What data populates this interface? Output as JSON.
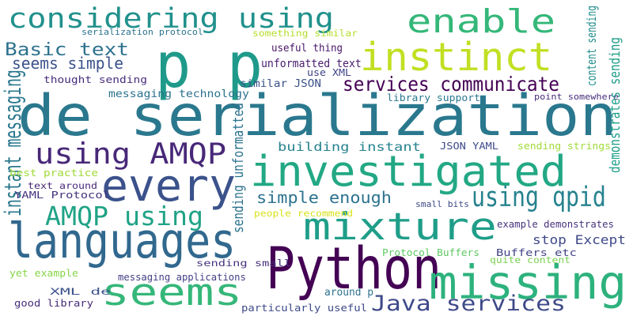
{
  "words": [
    {
      "text": "de serialization",
      "color": "#2a788e"
    },
    {
      "text": "p p",
      "color": "#1f9a8a"
    },
    {
      "text": "instinct",
      "color": "#c2df23"
    },
    {
      "text": "investigated",
      "color": "#22a884"
    },
    {
      "text": "languages",
      "color": "#31688e"
    },
    {
      "text": "Python",
      "color": "#440154"
    },
    {
      "text": "missing",
      "color": "#2db27d"
    },
    {
      "text": "mixture",
      "color": "#1f9e89"
    },
    {
      "text": "every",
      "color": "#3b528b"
    },
    {
      "text": "seems",
      "color": "#35b779"
    },
    {
      "text": "enable",
      "color": "#35b779"
    },
    {
      "text": "considering using",
      "color": "#21918c"
    },
    {
      "text": "using AMQP",
      "color": "#482878"
    },
    {
      "text": "Java services",
      "color": "#3e4a89"
    },
    {
      "text": "AMQP using",
      "color": "#20a386"
    },
    {
      "text": "using qpid",
      "color": "#26828e"
    },
    {
      "text": "services communicate",
      "color": "#440154"
    },
    {
      "text": "Basic text",
      "color": "#2c728e"
    },
    {
      "text": "seems simple",
      "color": "#3b528b"
    },
    {
      "text": "simple enough",
      "color": "#2c728e"
    },
    {
      "text": "building instant",
      "color": "#26828e"
    },
    {
      "text": "messaging technology",
      "color": "#2c728e"
    },
    {
      "text": "stop Except",
      "color": "#3e4a89"
    },
    {
      "text": "unformatted text",
      "color": "#481d6f"
    },
    {
      "text": "thought sending",
      "color": "#472d7b"
    },
    {
      "text": "useful thing",
      "color": "#481467"
    },
    {
      "text": "similar JSON",
      "color": "#3b528b"
    },
    {
      "text": "use XML",
      "color": "#414487"
    },
    {
      "text": "serialization protocol",
      "color": "#2c728e"
    },
    {
      "text": "something similar",
      "color": "#b5de2b"
    },
    {
      "text": "instant messaging",
      "color": "#2a788e"
    },
    {
      "text": "sending unformatted",
      "color": "#2c728e"
    },
    {
      "text": "library support",
      "color": "#2a788e"
    },
    {
      "text": "JSON YAML",
      "color": "#3e4a89"
    },
    {
      "text": "sending strings",
      "color": "#a0da39"
    },
    {
      "text": "point somewhere",
      "color": "#472d7b"
    },
    {
      "text": "demonstrates sending",
      "color": "#1f9e89"
    },
    {
      "text": "content sending",
      "color": "#228d8d"
    },
    {
      "text": "best practice",
      "color": "#a0da39"
    },
    {
      "text": "text around",
      "color": "#482878"
    },
    {
      "text": "YAML Protocol",
      "color": "#46337e"
    },
    {
      "text": "people recommend",
      "color": "#d8e219"
    },
    {
      "text": "small bits",
      "color": "#3e4a89"
    },
    {
      "text": "example demonstrates",
      "color": "#46337e"
    },
    {
      "text": "Protocol Buffers",
      "color": "#5ec962"
    },
    {
      "text": "Buffers etc",
      "color": "#414487"
    },
    {
      "text": "quite content",
      "color": "#7ad151"
    },
    {
      "text": "sending small",
      "color": "#46337e"
    },
    {
      "text": "messaging applications",
      "color": "#433e85"
    },
    {
      "text": "yet example",
      "color": "#86d549"
    },
    {
      "text": "XML de",
      "color": "#3b528b"
    },
    {
      "text": "good library",
      "color": "#472d7b"
    },
    {
      "text": "around p",
      "color": "#2c728e"
    },
    {
      "text": "particularly useful",
      "color": "#3e4a89"
    }
  ]
}
